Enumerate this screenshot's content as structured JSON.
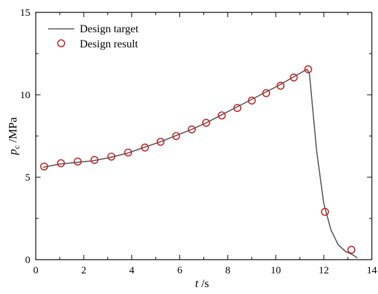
{
  "chart_data": {
    "type": "line",
    "title": "",
    "xlabel": {
      "var": "t",
      "unit": " /s"
    },
    "ylabel": {
      "var": "p",
      "sub": "c",
      "unit": " /MPa"
    },
    "xlim": [
      0,
      14
    ],
    "ylim": [
      0,
      15
    ],
    "xticks": [
      0,
      2,
      4,
      6,
      8,
      10,
      12,
      14
    ],
    "yticks": [
      0,
      5,
      10,
      15
    ],
    "grid": false,
    "legend_position": "top-left",
    "series": [
      {
        "name": "Design target",
        "kind": "line",
        "color": "#555555",
        "x": [
          0.3,
          1.0,
          1.7,
          2.4,
          3.1,
          3.8,
          4.5,
          5.2,
          5.8,
          6.5,
          7.1,
          7.7,
          8.3,
          8.9,
          9.5,
          10.1,
          10.7,
          11.3,
          11.4,
          11.7,
          12.0,
          12.3,
          12.6,
          12.9,
          13.2,
          13.4
        ],
        "y": [
          5.6,
          5.8,
          5.9,
          6.0,
          6.2,
          6.45,
          6.8,
          7.15,
          7.5,
          7.9,
          8.3,
          8.75,
          9.2,
          9.65,
          10.1,
          10.55,
          11.05,
          11.55,
          11.3,
          6.6,
          3.4,
          1.8,
          0.9,
          0.5,
          0.3,
          0.1
        ]
      },
      {
        "name": "Design result",
        "kind": "scatter",
        "color": "#cc2222",
        "x": [
          0.35,
          1.05,
          1.75,
          2.45,
          3.15,
          3.85,
          4.55,
          5.2,
          5.85,
          6.5,
          7.1,
          7.75,
          8.4,
          9.0,
          9.6,
          10.2,
          10.75,
          11.35,
          12.05,
          13.15
        ],
        "y": [
          5.65,
          5.85,
          5.95,
          6.05,
          6.25,
          6.5,
          6.8,
          7.15,
          7.5,
          7.9,
          8.3,
          8.75,
          9.2,
          9.65,
          10.1,
          10.55,
          11.05,
          11.55,
          2.9,
          0.6
        ]
      }
    ]
  }
}
